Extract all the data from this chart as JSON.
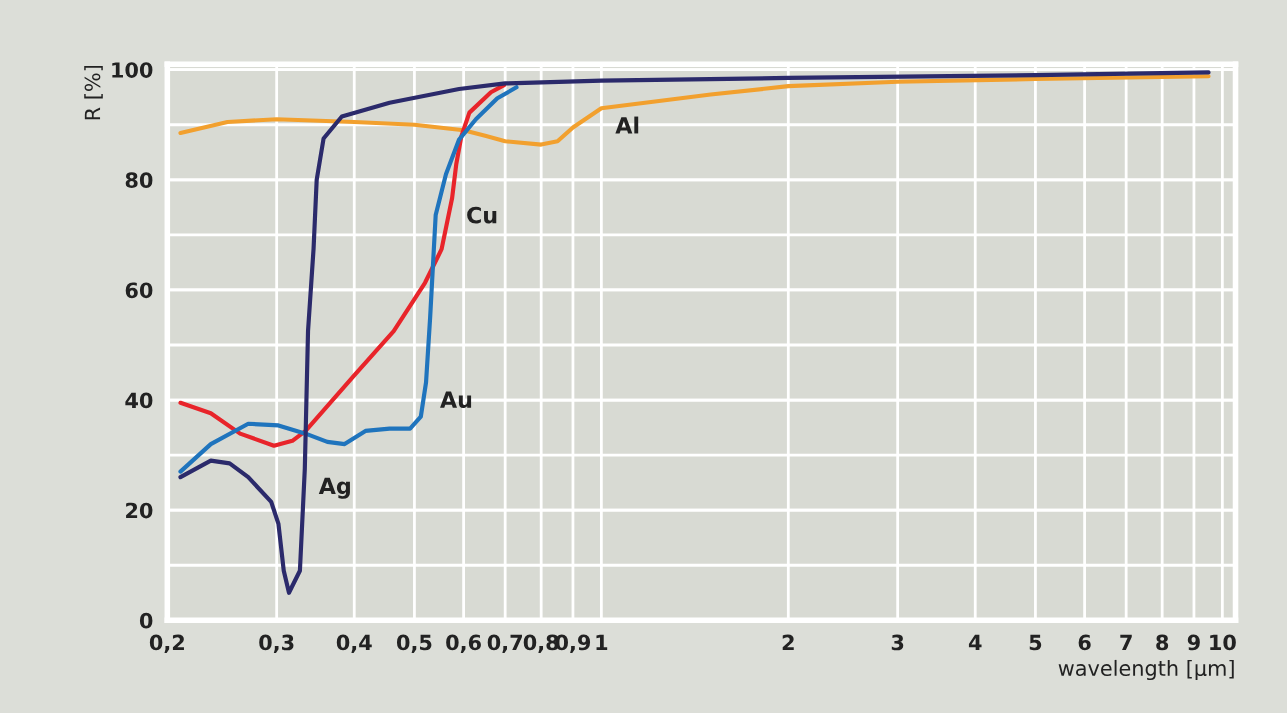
{
  "chart_data": {
    "type": "line",
    "xlabel": "wavelength [µm]",
    "ylabel": "R [%]",
    "log": "x",
    "grid": true,
    "marker": "none",
    "line_style": "solid",
    "xlim": [
      0.2,
      10.5
    ],
    "ylim": [
      0,
      101
    ],
    "xticks": [
      {
        "value": 0.2,
        "label": "0,2"
      },
      {
        "value": 0.3,
        "label": "0,3"
      },
      {
        "value": 0.4,
        "label": "0,4"
      },
      {
        "value": 0.5,
        "label": "0,5"
      },
      {
        "value": 0.6,
        "label": "0,6"
      },
      {
        "value": 0.7,
        "label": "0,7"
      },
      {
        "value": 0.8,
        "label": "0,8"
      },
      {
        "value": 0.9,
        "label": "0,9"
      },
      1,
      2,
      3,
      4,
      5,
      6,
      7,
      8,
      9,
      10
    ],
    "yticks": [
      0,
      20,
      40,
      60,
      80,
      100
    ],
    "series": [
      {
        "color": "#f2a02e",
        "x": [
          0.21,
          0.25,
          0.3,
          0.4,
          0.5,
          0.6,
          0.65,
          0.7,
          0.8,
          0.85,
          0.9,
          1,
          1.5,
          2,
          3,
          5,
          9.5
        ],
        "values": [
          88.5,
          90.5,
          91,
          90.5,
          90,
          89,
          88,
          87,
          86.4,
          87,
          89.5,
          93,
          95.5,
          97,
          97.8,
          98.3,
          98.8
        ]
      },
      {
        "color": "#e8242a",
        "x": [
          0.21,
          0.235,
          0.262,
          0.297,
          0.318,
          0.334,
          0.4,
          0.463,
          0.52,
          0.553,
          0.575,
          0.584,
          0.595,
          0.613,
          0.664,
          0.697
        ],
        "values": [
          39.5,
          37.6,
          33.9,
          31.7,
          32.6,
          34.4,
          44.5,
          52.5,
          61.3,
          67.4,
          76.7,
          82.9,
          87.9,
          92.2,
          95.9,
          97.2
        ]
      },
      {
        "color": "#1f74bd",
        "x": [
          0.21,
          0.235,
          0.27,
          0.302,
          0.334,
          0.362,
          0.386,
          0.417,
          0.456,
          0.492,
          0.512,
          0.522,
          0.53,
          0.541,
          0.562,
          0.59,
          0.628,
          0.68,
          0.73
        ],
        "values": [
          27,
          32,
          35.7,
          35.4,
          33.9,
          32.4,
          32,
          34.4,
          34.8,
          34.8,
          37,
          43.2,
          55,
          73.6,
          81,
          87.3,
          91,
          94.8,
          96.8
        ]
      },
      {
        "color": "#2b2a6b",
        "x": [
          0.21,
          0.235,
          0.252,
          0.27,
          0.294,
          0.302,
          0.308,
          0.314,
          0.327,
          0.333,
          0.337,
          0.344,
          0.348,
          0.357,
          0.382,
          0.456,
          0.59,
          0.7,
          1,
          2,
          5,
          9.5
        ],
        "values": [
          26,
          29,
          28.5,
          26,
          21.5,
          17.5,
          9,
          5,
          9,
          27.5,
          52.5,
          67.5,
          80,
          87.5,
          91.5,
          94,
          96.5,
          97.5,
          98,
          98.5,
          99,
          99.5
        ]
      }
    ],
    "annotations": [
      {
        "text": "Al",
        "x": 1,
        "y": 93
      },
      {
        "text": "Cu",
        "x": 0.575,
        "y": 76.7
      },
      {
        "text": "Au",
        "x": 0.522,
        "y": 43.2
      },
      {
        "text": "Ag",
        "x": 0.333,
        "y": 27.5
      }
    ]
  }
}
